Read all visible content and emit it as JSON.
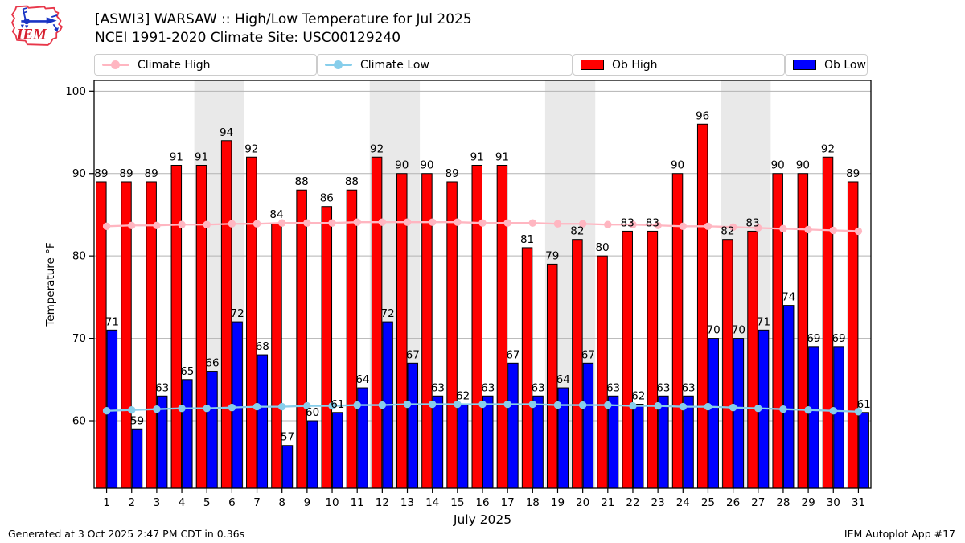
{
  "header": {
    "logo_text": "IEM",
    "title_line1": "[ASWI3] WARSAW :: High/Low Temperature for Jul 2025",
    "title_line2": "NCEI 1991-2020 Climate Site: USC00129240"
  },
  "legend": {
    "items": [
      {
        "label": "Climate High",
        "swatch": "line",
        "color": "#ffb6c1"
      },
      {
        "label": "Climate Low",
        "swatch": "line",
        "color": "#87ceeb"
      },
      {
        "label": "Ob High",
        "swatch": "patch",
        "color": "#ff0000"
      },
      {
        "label": "Ob Low",
        "swatch": "patch",
        "color": "#0000ff"
      }
    ]
  },
  "chart_data": {
    "type": "bar",
    "title": "[ASWI3] WARSAW :: High/Low Temperature for Jul 2025",
    "subtitle": "NCEI 1991-2020 Climate Site: USC00129240",
    "xlabel": "July 2025",
    "ylabel": "Temperature °F",
    "x": [
      1,
      2,
      3,
      4,
      5,
      6,
      7,
      8,
      9,
      10,
      11,
      12,
      13,
      14,
      15,
      16,
      17,
      18,
      19,
      20,
      21,
      22,
      23,
      24,
      25,
      26,
      27,
      28,
      29,
      30,
      31
    ],
    "ylim": [
      51.8,
      101.3
    ],
    "yticks": [
      60,
      70,
      80,
      90,
      100
    ],
    "grid": true,
    "legend_position": "top",
    "weekend_shading_days": [
      [
        5,
        6
      ],
      [
        12,
        13
      ],
      [
        19,
        20
      ],
      [
        26,
        27
      ]
    ],
    "weekend_shading_color": "#e9e9e9",
    "gridline_color": "#b3b3b3",
    "bar_labels": true,
    "series": [
      {
        "name": "Ob High",
        "type": "bar",
        "color": "#ff0000",
        "values": [
          89,
          89,
          89,
          91,
          91,
          94,
          92,
          84,
          88,
          86,
          88,
          92,
          90,
          90,
          89,
          91,
          91,
          81,
          79,
          82,
          80,
          83,
          83,
          90,
          96,
          82,
          83,
          90,
          90,
          92,
          89
        ]
      },
      {
        "name": "Ob Low",
        "type": "bar",
        "color": "#0000ff",
        "values": [
          71,
          59,
          63,
          65,
          66,
          72,
          68,
          57,
          60,
          61,
          64,
          72,
          67,
          63,
          62,
          63,
          67,
          63,
          64,
          67,
          63,
          62,
          63,
          63,
          70,
          70,
          71,
          74,
          69,
          69,
          61
        ]
      },
      {
        "name": "Climate High",
        "type": "line",
        "color": "#ffb6c1",
        "values": [
          83.6,
          83.7,
          83.7,
          83.8,
          83.8,
          83.9,
          83.9,
          84.0,
          84.0,
          84.0,
          84.1,
          84.1,
          84.1,
          84.1,
          84.1,
          84.0,
          84.0,
          84.0,
          83.9,
          83.9,
          83.8,
          83.8,
          83.7,
          83.6,
          83.6,
          83.5,
          83.4,
          83.3,
          83.2,
          83.1,
          83.0
        ]
      },
      {
        "name": "Climate Low",
        "type": "line",
        "color": "#87ceeb",
        "values": [
          61.2,
          61.3,
          61.4,
          61.5,
          61.5,
          61.6,
          61.7,
          61.7,
          61.8,
          61.8,
          61.9,
          61.9,
          62.0,
          62.0,
          62.0,
          62.0,
          62.0,
          62.0,
          61.9,
          61.9,
          61.9,
          61.8,
          61.8,
          61.7,
          61.7,
          61.6,
          61.5,
          61.4,
          61.3,
          61.2,
          61.1
        ]
      }
    ]
  },
  "footer": {
    "left": "Generated at 3 Oct 2025 2:47 PM CDT in 0.36s",
    "right": "IEM Autoplot App #17"
  }
}
